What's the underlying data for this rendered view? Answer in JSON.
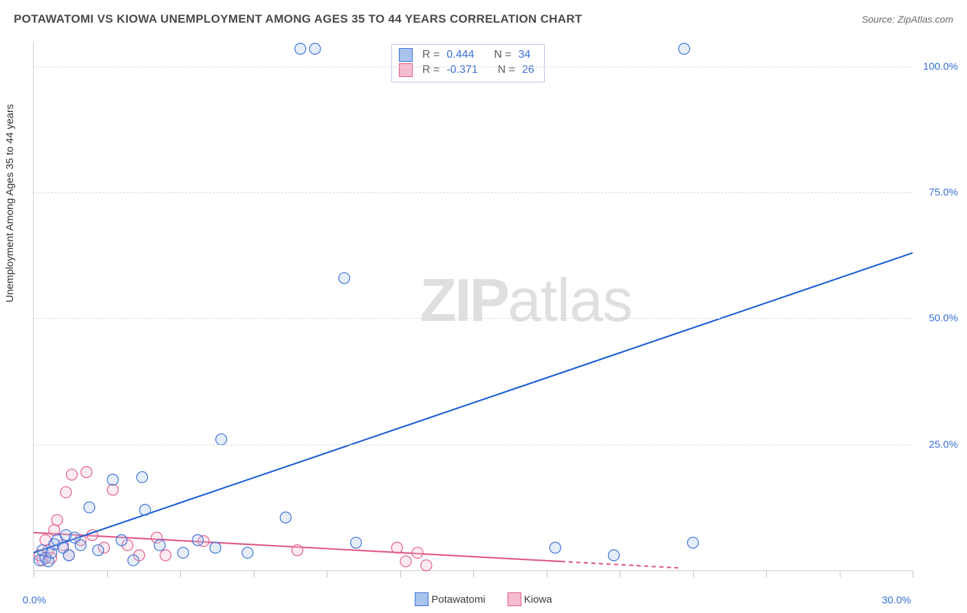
{
  "title": "POTAWATOMI VS KIOWA UNEMPLOYMENT AMONG AGES 35 TO 44 YEARS CORRELATION CHART",
  "source_prefix": "Source: ",
  "source_name": "ZipAtlas.com",
  "yaxis_title": "Unemployment Among Ages 35 to 44 years",
  "watermark_a": "ZIP",
  "watermark_b": "atlas",
  "chart": {
    "type": "scatter-with-regression",
    "xlim": [
      0,
      30
    ],
    "ylim": [
      0,
      105
    ],
    "x_ticks": [
      0,
      2.5,
      5,
      7.5,
      10,
      12.5,
      15,
      17.5,
      20,
      22.5,
      25,
      27.5,
      30
    ],
    "x_tick_labels": {
      "0": "0.0%",
      "30": "30.0%"
    },
    "y_gridlines": [
      25,
      50,
      75,
      100
    ],
    "y_tick_labels": {
      "25": "25.0%",
      "50": "50.0%",
      "75": "75.0%",
      "100": "100.0%"
    },
    "background_color": "#ffffff",
    "grid_color": "#d8d8d8",
    "axis_color": "#cfcfcf",
    "marker_radius": 8,
    "marker_stroke_width": 1.2,
    "marker_fill_opacity": 0.3,
    "regression_line_width": 2.2,
    "series": [
      {
        "name": "Potawatomi",
        "fill_color": "#a8c3ec",
        "stroke_color": "#3a6fd8",
        "line_color": "#1e5fd6",
        "stats": {
          "R": "0.444",
          "N": "34"
        },
        "regression": {
          "x1": 0,
          "y1": 3.5,
          "x2": 30,
          "y2": 63,
          "dash_from_x": null
        },
        "points": [
          [
            0.2,
            2.0
          ],
          [
            0.3,
            4.0
          ],
          [
            0.4,
            2.5
          ],
          [
            0.5,
            1.8
          ],
          [
            0.6,
            3.5
          ],
          [
            0.7,
            5.2
          ],
          [
            0.8,
            6.0
          ],
          [
            1.0,
            4.5
          ],
          [
            1.1,
            7.0
          ],
          [
            1.2,
            3.0
          ],
          [
            1.4,
            6.5
          ],
          [
            1.6,
            5.0
          ],
          [
            1.9,
            12.5
          ],
          [
            2.2,
            4.0
          ],
          [
            2.7,
            18.0
          ],
          [
            3.0,
            6.0
          ],
          [
            3.4,
            2.0
          ],
          [
            3.7,
            18.5
          ],
          [
            3.8,
            12.0
          ],
          [
            4.3,
            5.0
          ],
          [
            5.1,
            3.5
          ],
          [
            5.6,
            6.0
          ],
          [
            6.2,
            4.5
          ],
          [
            6.4,
            26.0
          ],
          [
            7.3,
            3.5
          ],
          [
            8.6,
            10.5
          ],
          [
            9.1,
            103.5
          ],
          [
            9.6,
            103.5
          ],
          [
            10.6,
            58.0
          ],
          [
            11.0,
            5.5
          ],
          [
            17.8,
            4.5
          ],
          [
            19.8,
            3.0
          ],
          [
            22.2,
            103.5
          ],
          [
            22.5,
            5.5
          ]
        ]
      },
      {
        "name": "Kiowa",
        "fill_color": "#f5bccd",
        "stroke_color": "#e15a8a",
        "line_color": "#e15a8a",
        "stats": {
          "R": "-0.371",
          "N": "26"
        },
        "regression": {
          "x1": 0,
          "y1": 7.5,
          "x2": 22,
          "y2": 0.5,
          "dash_from_x": 18
        },
        "points": [
          [
            0.2,
            3.0
          ],
          [
            0.3,
            2.0
          ],
          [
            0.4,
            6.0
          ],
          [
            0.5,
            4.0
          ],
          [
            0.6,
            2.5
          ],
          [
            0.7,
            8.0
          ],
          [
            0.8,
            10.0
          ],
          [
            1.0,
            5.0
          ],
          [
            1.1,
            15.5
          ],
          [
            1.2,
            3.0
          ],
          [
            1.3,
            19.0
          ],
          [
            1.6,
            6.0
          ],
          [
            1.8,
            19.5
          ],
          [
            2.0,
            7.0
          ],
          [
            2.4,
            4.5
          ],
          [
            2.7,
            16.0
          ],
          [
            3.2,
            5.0
          ],
          [
            3.6,
            3.0
          ],
          [
            4.2,
            6.5
          ],
          [
            4.5,
            3.0
          ],
          [
            5.8,
            5.8
          ],
          [
            9.0,
            4.0
          ],
          [
            12.4,
            4.5
          ],
          [
            12.7,
            1.8
          ],
          [
            13.1,
            3.5
          ],
          [
            13.4,
            1.0
          ]
        ]
      }
    ]
  },
  "legend_stats": {
    "r_label": "R =",
    "n_label": "N ="
  },
  "bottom_legend": {
    "items": [
      "Potawatomi",
      "Kiowa"
    ]
  }
}
